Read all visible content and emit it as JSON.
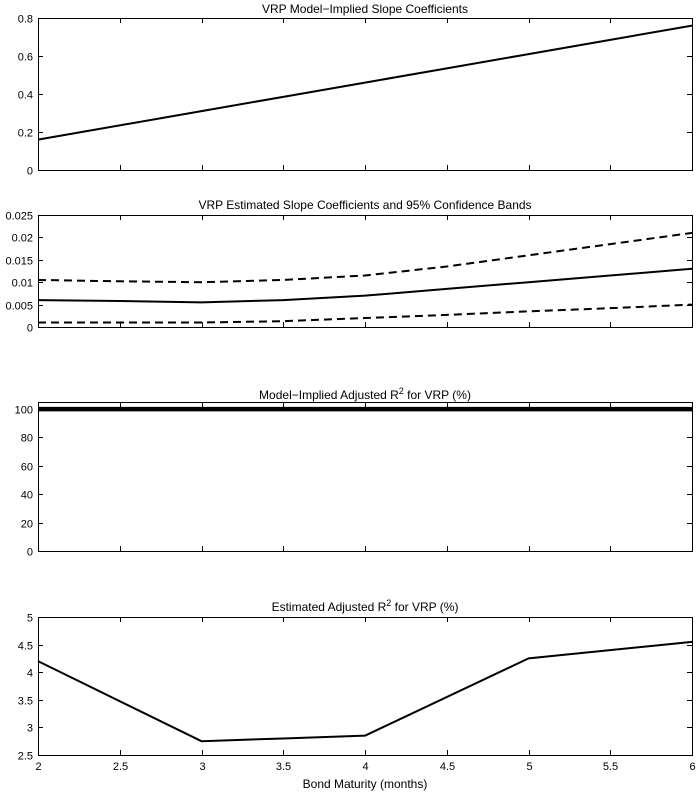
{
  "chart_data": [
    {
      "type": "line",
      "title": "VRP Model−Implied Slope Coefficients",
      "xlim": [
        2,
        6
      ],
      "ylim": [
        0,
        0.8
      ],
      "xticks": [
        2,
        2.5,
        3,
        3.5,
        4,
        4.5,
        5,
        5.5,
        6
      ],
      "yticks": [
        0,
        0.2,
        0.4,
        0.6,
        0.8
      ],
      "show_xtick_labels": false,
      "grid": false,
      "series": [
        {
          "name": "model-implied-slope",
          "style": "solid",
          "width": 2,
          "x": [
            2,
            2.5,
            3,
            3.5,
            4,
            4.5,
            5,
            5.5,
            6
          ],
          "values": [
            0.16,
            0.235,
            0.31,
            0.385,
            0.46,
            0.535,
            0.61,
            0.685,
            0.76
          ]
        }
      ]
    },
    {
      "type": "line",
      "title": "VRP Estimated Slope Coefficients and 95% Confidence Bands",
      "xlim": [
        2,
        6
      ],
      "ylim": [
        0,
        0.025
      ],
      "xticks": [
        2,
        2.5,
        3,
        3.5,
        4,
        4.5,
        5,
        5.5,
        6
      ],
      "yticks": [
        0,
        0.005,
        0.01,
        0.015,
        0.02,
        0.025
      ],
      "show_xtick_labels": false,
      "grid": false,
      "series": [
        {
          "name": "estimated-slope",
          "style": "solid",
          "width": 2,
          "x": [
            2,
            2.5,
            3,
            3.5,
            4,
            4.5,
            5,
            5.5,
            6
          ],
          "values": [
            0.006,
            0.0058,
            0.0055,
            0.006,
            0.007,
            0.0085,
            0.01,
            0.0115,
            0.013
          ]
        },
        {
          "name": "upper-95-confidence-band",
          "style": "dashed",
          "width": 2,
          "x": [
            2,
            2.5,
            3,
            3.5,
            4,
            4.5,
            5,
            5.5,
            6
          ],
          "values": [
            0.0105,
            0.0102,
            0.01,
            0.0105,
            0.0115,
            0.0135,
            0.016,
            0.0185,
            0.021
          ]
        },
        {
          "name": "lower-95-confidence-band",
          "style": "dashed",
          "width": 2,
          "x": [
            2,
            2.5,
            3,
            3.5,
            4,
            4.5,
            5,
            5.5,
            6
          ],
          "values": [
            0.001,
            0.001,
            0.001,
            0.0013,
            0.002,
            0.0027,
            0.0035,
            0.0042,
            0.005
          ]
        }
      ]
    },
    {
      "type": "line",
      "title": "Model−Implied Adjusted R² for VRP (%)",
      "title_prefix": "Model−Implied Adjusted R",
      "title_sup": "2",
      "title_suffix": " for VRP (%)",
      "xlim": [
        2,
        6
      ],
      "ylim": [
        0,
        105
      ],
      "xticks": [
        2,
        2.5,
        3,
        3.5,
        4,
        4.5,
        5,
        5.5,
        6
      ],
      "yticks": [
        0,
        20,
        40,
        60,
        80,
        100
      ],
      "show_xtick_labels": false,
      "grid": false,
      "series": [
        {
          "name": "model-implied-adjusted-r2",
          "style": "solid",
          "width": 4.5,
          "x": [
            2,
            6
          ],
          "values": [
            100,
            100
          ]
        }
      ]
    },
    {
      "type": "line",
      "title": "Estimated Adjusted R² for VRP (%)",
      "title_prefix": "Estimated Adjusted R",
      "title_sup": "2",
      "title_suffix": " for VRP (%)",
      "xlabel": "Bond Maturity (months)",
      "xlim": [
        2,
        6
      ],
      "ylim": [
        2.5,
        5
      ],
      "xticks": [
        2,
        2.5,
        3,
        3.5,
        4,
        4.5,
        5,
        5.5,
        6
      ],
      "yticks": [
        2.5,
        3,
        3.5,
        4,
        4.5,
        5
      ],
      "show_xtick_labels": true,
      "grid": false,
      "series": [
        {
          "name": "estimated-adjusted-r2",
          "style": "solid",
          "width": 2,
          "x": [
            2,
            3,
            3.5,
            4,
            5,
            6
          ],
          "values": [
            4.2,
            2.75,
            2.8,
            2.85,
            4.25,
            4.55
          ]
        }
      ]
    }
  ]
}
